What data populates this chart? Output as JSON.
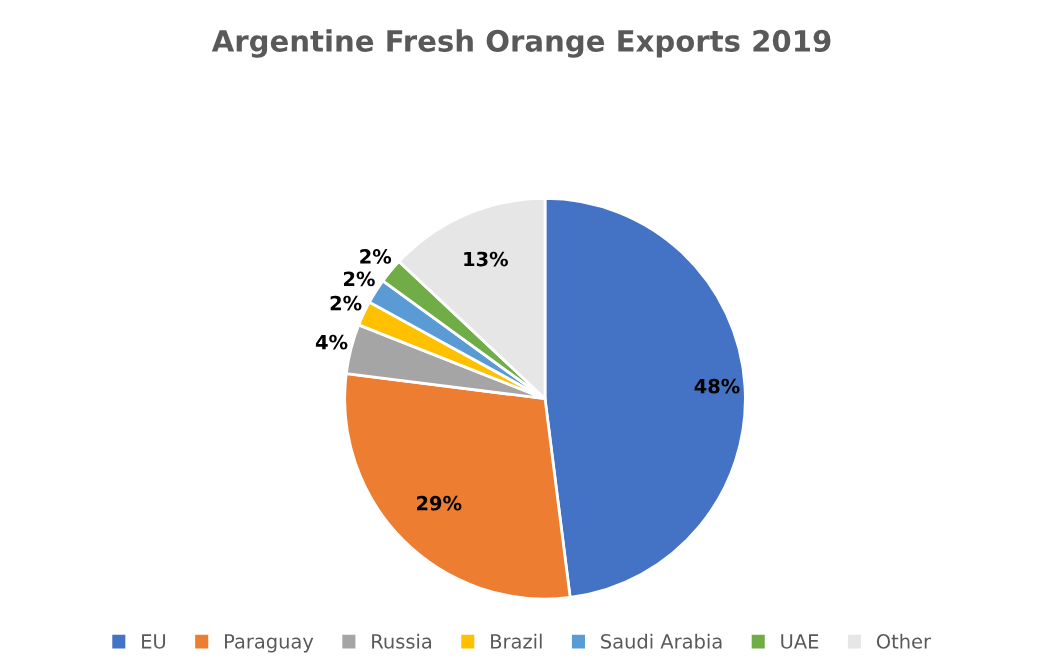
{
  "chart_data": {
    "type": "pie",
    "title": "Argentine Fresh Orange Exports 2019",
    "categories": [
      "EU",
      "Paraguay",
      "Russia",
      "Brazil",
      "Saudi Arabia",
      "UAE",
      "Other"
    ],
    "values": [
      48,
      29,
      4,
      2,
      2,
      2,
      13
    ],
    "colors": [
      "#4472c4",
      "#ed7d31",
      "#a5a5a5",
      "#ffc000",
      "#5b9bd5",
      "#70ad47",
      "#e7e6e6"
    ],
    "value_labels": [
      "48%",
      "29%",
      "4%",
      "2%",
      "2%",
      "2%",
      "13%"
    ],
    "legend": "bottom"
  }
}
